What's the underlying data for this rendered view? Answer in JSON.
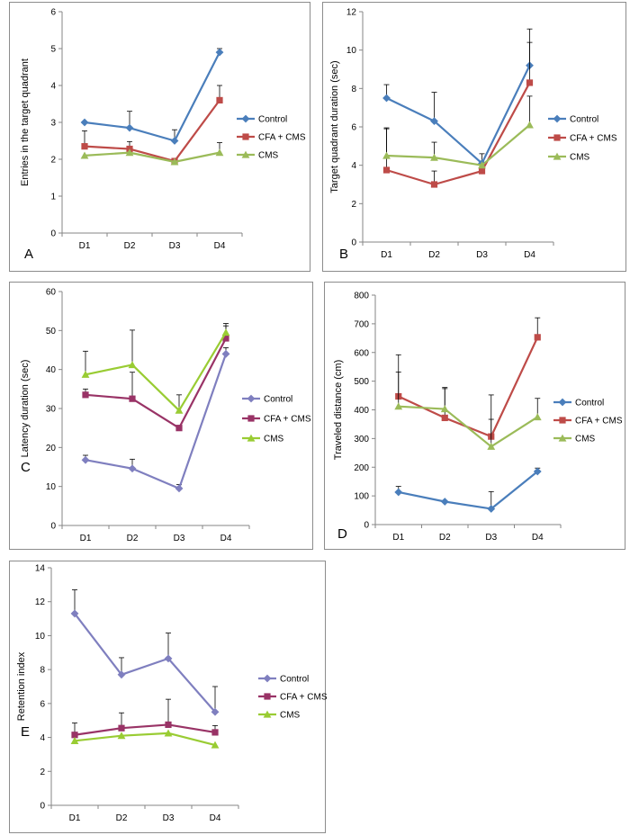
{
  "colors": {
    "blue": "#4a7ebb",
    "red": "#be4b48",
    "green": "#9bbb59",
    "purple": "#7f7fbf",
    "maroon": "#993366",
    "lime": "#99cc33"
  },
  "chart_data": [
    {
      "panel_letter": "A",
      "type": "line",
      "ylabel": "Entries in the target quadrant",
      "xlabel": "",
      "categories": [
        "D1",
        "D2",
        "D3",
        "D4"
      ],
      "ylim": [
        0,
        6
      ],
      "yticks": [
        0,
        1,
        2,
        3,
        4,
        5,
        6
      ],
      "legend_position": "right",
      "series": [
        {
          "name": "Control",
          "color": "#4a7ebb",
          "marker": "diamond",
          "values": [
            3.0,
            2.85,
            2.5,
            4.9
          ],
          "errors": [
            0.0,
            0.45,
            0.3,
            0.1
          ]
        },
        {
          "name": "CFA + CMS",
          "color": "#be4b48",
          "marker": "square",
          "values": [
            2.35,
            2.28,
            1.95,
            3.6
          ],
          "errors": [
            0.42,
            0.2,
            0.0,
            0.4
          ]
        },
        {
          "name": "CMS",
          "color": "#9bbb59",
          "marker": "triangle",
          "values": [
            2.1,
            2.18,
            1.93,
            2.18
          ],
          "errors": [
            0.0,
            0.0,
            0.0,
            0.27
          ]
        }
      ]
    },
    {
      "panel_letter": "B",
      "type": "line",
      "ylabel": "Target quadrant duration (sec)",
      "xlabel": "",
      "categories": [
        "D1",
        "D2",
        "D3",
        "D4"
      ],
      "ylim": [
        0,
        12
      ],
      "yticks": [
        0,
        2,
        4,
        6,
        8,
        10,
        12
      ],
      "legend_position": "right",
      "series": [
        {
          "name": "Control",
          "color": "#4a7ebb",
          "marker": "diamond",
          "values": [
            7.5,
            6.3,
            4.1,
            9.2
          ],
          "errors": [
            0.7,
            1.5,
            0.5,
            1.9
          ]
        },
        {
          "name": "CFA + CMS",
          "color": "#be4b48",
          "marker": "square",
          "values": [
            3.75,
            3.0,
            3.7,
            8.3
          ],
          "errors": [
            2.2,
            0.7,
            0.0,
            2.1
          ]
        },
        {
          "name": "CMS",
          "color": "#9bbb59",
          "marker": "triangle",
          "values": [
            4.5,
            4.4,
            4.0,
            6.1
          ],
          "errors": [
            1.4,
            0.8,
            0.0,
            1.5
          ]
        }
      ]
    },
    {
      "panel_letter": "C",
      "type": "line",
      "ylabel": "Latency duration (sec)",
      "xlabel": "",
      "categories": [
        "D1",
        "D2",
        "D3",
        "D4"
      ],
      "ylim": [
        0,
        60
      ],
      "yticks": [
        0,
        10,
        20,
        30,
        40,
        50,
        60
      ],
      "legend_position": "right",
      "series": [
        {
          "name": "Control",
          "color": "#7f7fbf",
          "marker": "diamond",
          "values": [
            16.8,
            14.6,
            9.5,
            44.0
          ],
          "errors": [
            1.2,
            2.4,
            1.0,
            1.6
          ]
        },
        {
          "name": "CFA + CMS",
          "color": "#993366",
          "marker": "square",
          "values": [
            33.5,
            32.5,
            25.0,
            48.0
          ],
          "errors": [
            1.5,
            6.8,
            0.0,
            3.2
          ]
        },
        {
          "name": "CMS",
          "color": "#99cc33",
          "marker": "triangle",
          "values": [
            38.7,
            41.2,
            29.5,
            49.5
          ],
          "errors": [
            6.0,
            8.9,
            4.0,
            2.3
          ]
        }
      ]
    },
    {
      "panel_letter": "D",
      "type": "line",
      "ylabel": "Traveled distance (cm)",
      "xlabel": "",
      "categories": [
        "D1",
        "D2",
        "D3",
        "D4"
      ],
      "ylim": [
        0,
        800
      ],
      "yticks": [
        0,
        100,
        200,
        300,
        400,
        500,
        600,
        700,
        800
      ],
      "legend_position": "right",
      "series": [
        {
          "name": "Control",
          "color": "#4a7ebb",
          "marker": "diamond",
          "values": [
            113,
            80,
            55,
            185
          ],
          "errors": [
            20,
            0,
            60,
            12
          ]
        },
        {
          "name": "CFA + CMS",
          "color": "#be4b48",
          "marker": "square",
          "values": [
            447,
            372,
            307,
            653
          ],
          "errors": [
            145,
            102,
            145,
            68
          ]
        },
        {
          "name": "CMS",
          "color": "#9bbb59",
          "marker": "triangle",
          "values": [
            412,
            403,
            272,
            375
          ],
          "errors": [
            120,
            75,
            95,
            65
          ]
        }
      ]
    },
    {
      "panel_letter": "E",
      "type": "line",
      "ylabel": "Retention index",
      "xlabel": "",
      "categories": [
        "D1",
        "D2",
        "D3",
        "D4"
      ],
      "ylim": [
        0,
        14
      ],
      "yticks": [
        0,
        2,
        4,
        6,
        8,
        10,
        12,
        14
      ],
      "legend_position": "right",
      "series": [
        {
          "name": "Control",
          "color": "#7f7fbf",
          "marker": "diamond",
          "values": [
            11.3,
            7.7,
            8.65,
            5.5
          ],
          "errors": [
            1.4,
            1.0,
            1.5,
            1.5
          ]
        },
        {
          "name": "CFA + CMS",
          "color": "#993366",
          "marker": "square",
          "values": [
            4.15,
            4.55,
            4.75,
            4.3
          ],
          "errors": [
            0.7,
            0.9,
            1.5,
            0.4
          ]
        },
        {
          "name": "CMS",
          "color": "#99cc33",
          "marker": "triangle",
          "values": [
            3.8,
            4.1,
            4.25,
            3.55
          ],
          "errors": [
            0.0,
            0.0,
            0.0,
            0.0
          ]
        }
      ]
    }
  ]
}
